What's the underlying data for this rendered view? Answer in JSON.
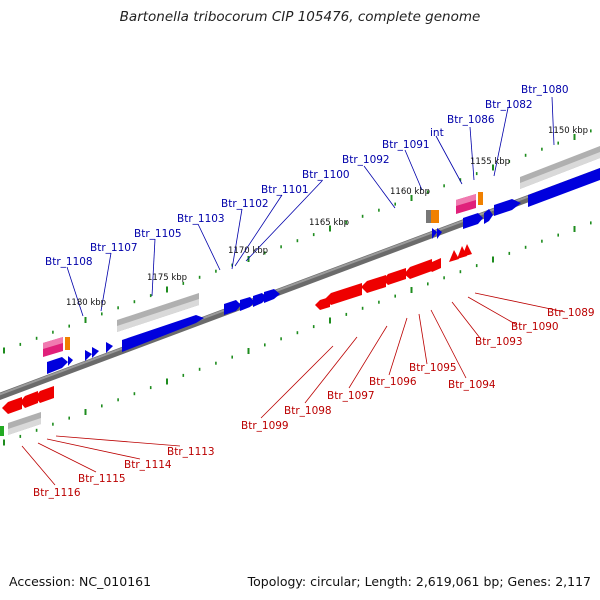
{
  "title": "Bartonella tribocorum CIP 105476, complete genome",
  "footer": {
    "accession": "Accession: NC_010161",
    "summary": "Topology: circular; Length: 2,619,061 bp; Genes: 2,117"
  },
  "colors": {
    "forward_gene": "#0000dd",
    "reverse_gene": "#ee0000",
    "forward_label": "#0000aa",
    "reverse_label": "#bb0000",
    "backbone": "#777777",
    "tick": "#1e8c1e",
    "rrna": "#e0207a",
    "trna": "#f08000",
    "misc_gray": "#aaaaaa"
  },
  "kbp_markers": [
    "1150 kbp",
    "1155 kbp",
    "1160 kbp",
    "1165 kbp",
    "1170 kbp",
    "1175 kbp",
    "1180 kbp"
  ],
  "forward_labels": [
    "Btr_1080",
    "Btr_1082",
    "Btr_1086",
    "int",
    "Btr_1091",
    "Btr_1092",
    "Btr_1100",
    "Btr_1101",
    "Btr_1102",
    "Btr_1103",
    "Btr_1105",
    "Btr_1107",
    "Btr_1108"
  ],
  "reverse_labels": [
    "Btr_1089",
    "Btr_1090",
    "Btr_1093",
    "Btr_1094",
    "Btr_1095",
    "Btr_1096",
    "Btr_1097",
    "Btr_1098",
    "Btr_1099",
    "Btr_1113",
    "Btr_1114",
    "Btr_1115",
    "Btr_1116"
  ]
}
